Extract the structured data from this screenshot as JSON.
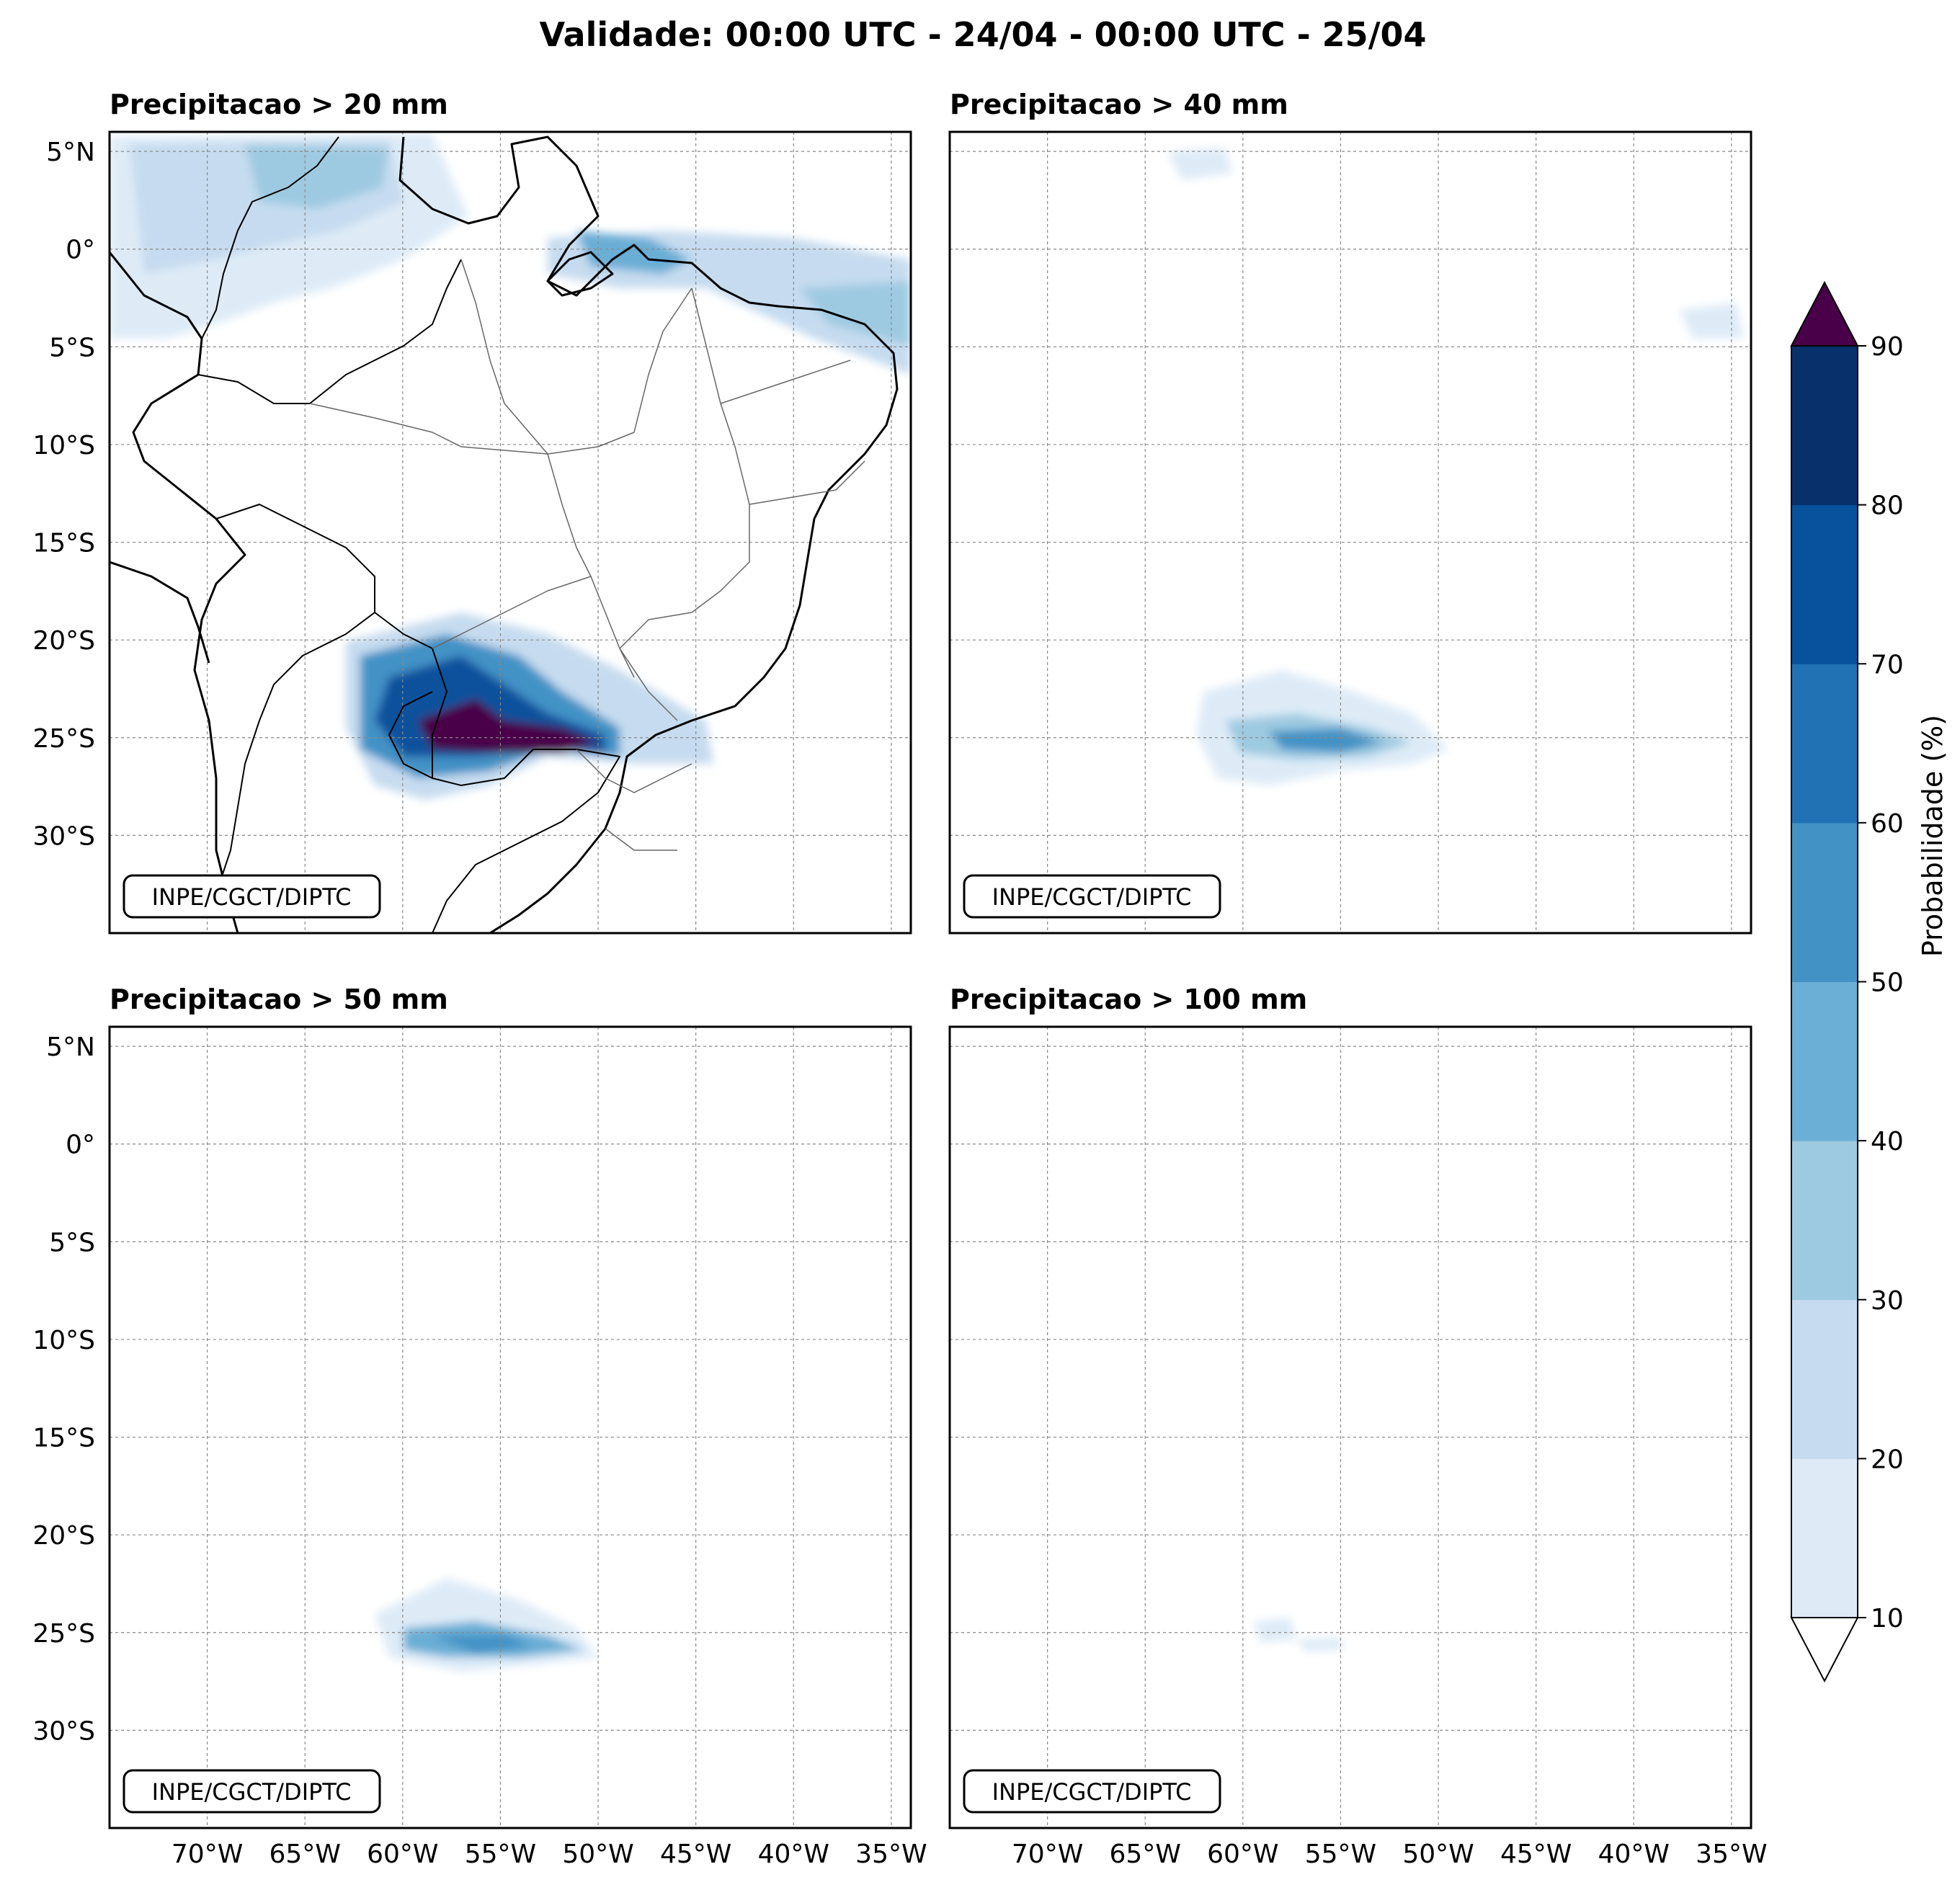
{
  "figure": {
    "title": "Validade: 00:00 UTC - 24/04 - 00:00 UTC - 25/04",
    "watermark": "INPE/CGCT/DIPTC"
  },
  "panels": [
    {
      "id": "p20",
      "title": "Precipitacao > 20 mm",
      "watermark": "INPE/CGCT/DIPTC"
    },
    {
      "id": "p40",
      "title": "Precipitacao > 40 mm",
      "watermark": "INPE/CGCT/DIPTC"
    },
    {
      "id": "p50",
      "title": "Precipitacao > 50 mm",
      "watermark": "INPE/CGCT/DIPTC"
    },
    {
      "id": "p100",
      "title": "Precipitacao > 100 mm",
      "watermark": "INPE/CGCT/DIPTC"
    }
  ],
  "axes": {
    "lon_labels": [
      "70°W",
      "65°W",
      "60°W",
      "55°W",
      "50°W",
      "45°W",
      "40°W",
      "35°W"
    ],
    "lat_labels": [
      "5°N",
      "0°",
      "5°S",
      "10°S",
      "15°S",
      "20°S",
      "25°S",
      "30°S"
    ],
    "lon_values": [
      -70,
      -65,
      -60,
      -55,
      -50,
      -45,
      -40,
      -35
    ],
    "lat_values": [
      5,
      0,
      -5,
      -10,
      -15,
      -20,
      -25,
      -30
    ],
    "lon_range": [
      -75,
      -34
    ],
    "lat_range": [
      -35,
      6
    ]
  },
  "colorbar": {
    "label": "Probabilidade (%)",
    "tick_labels": [
      "10",
      "20",
      "30",
      "40",
      "50",
      "60",
      "70",
      "80",
      "90"
    ],
    "levels": [
      10,
      20,
      30,
      40,
      50,
      60,
      70,
      80,
      90
    ],
    "colors": [
      "#deebf7",
      "#c6dbef",
      "#9ecae1",
      "#6baed6",
      "#4292c6",
      "#2171b5",
      "#08519c",
      "#08306b"
    ],
    "over_color": "#4a0048",
    "under_color": "#ffffff"
  }
}
